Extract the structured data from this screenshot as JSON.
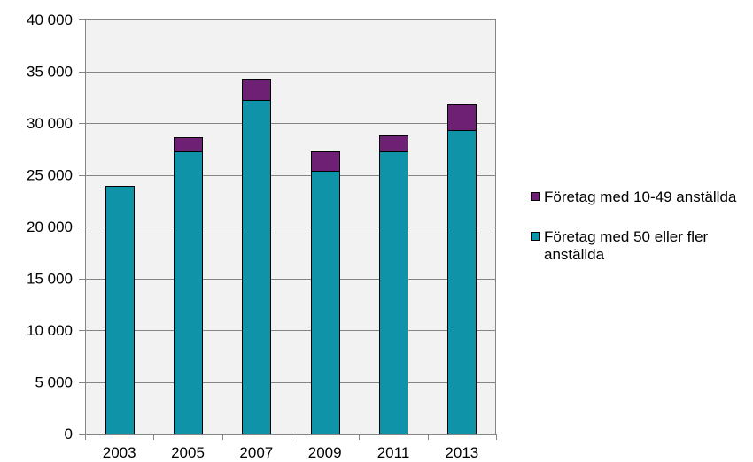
{
  "chart_data": {
    "type": "bar",
    "stacked": true,
    "categories": [
      "2003",
      "2005",
      "2007",
      "2009",
      "2011",
      "2013"
    ],
    "series": [
      {
        "name": "Företag med 50 eller fler anställda",
        "color": "#0e93a8",
        "values": [
          23900,
          27300,
          32200,
          25400,
          27300,
          29300
        ]
      },
      {
        "name": "Företag med 10-49 anställda",
        "color": "#6d2074",
        "values": [
          0,
          1300,
          2100,
          1900,
          1500,
          2500
        ]
      }
    ],
    "ylim": [
      0,
      40000
    ],
    "yticks": [
      0,
      5000,
      10000,
      15000,
      20000,
      25000,
      30000,
      35000,
      40000
    ],
    "ytick_labels": [
      "0",
      "5 000",
      "10 000",
      "15 000",
      "20 000",
      "25 000",
      "30 000",
      "35 000",
      "40 000"
    ],
    "grid": true,
    "plot_background": "#f2f2f2",
    "legend_position": "right",
    "legend": [
      {
        "name": "Företag med 10-49 anställda",
        "color": "#6d2074"
      },
      {
        "name": "Företag med 50 eller fler anställda",
        "color": "#0e93a8"
      }
    ]
  }
}
